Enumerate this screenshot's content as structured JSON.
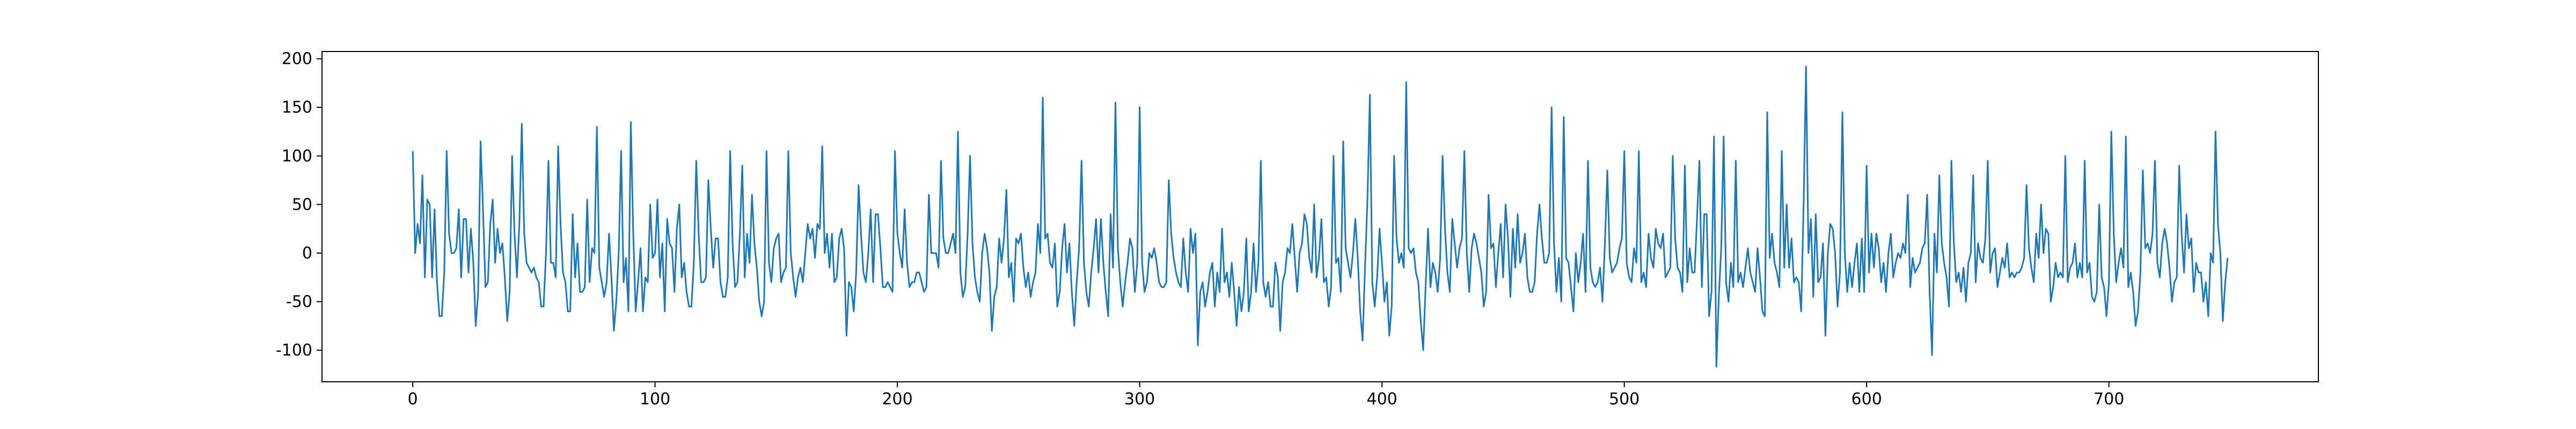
{
  "chart_data": {
    "type": "line",
    "color": "#1f77b4",
    "xlim": [
      -37.45,
      786.45
    ],
    "xticks": [
      0,
      100,
      200,
      300,
      400,
      500,
      600,
      700
    ],
    "ylim": [
      -132.5,
      207.5
    ],
    "yticks": [
      -100,
      -50,
      0,
      50,
      100,
      150,
      200
    ],
    "values": [
      105,
      0,
      30,
      10,
      80,
      -25,
      55,
      50,
      -25,
      45,
      -30,
      -65,
      -65,
      -20,
      105,
      20,
      0,
      0,
      5,
      45,
      -25,
      35,
      35,
      -20,
      25,
      -10,
      -75,
      -40,
      115,
      45,
      -35,
      -30,
      30,
      55,
      -10,
      25,
      0,
      10,
      -25,
      -70,
      -40,
      100,
      20,
      -25,
      30,
      133,
      20,
      -10,
      -15,
      -20,
      -15,
      -25,
      -30,
      -55,
      -55,
      0,
      95,
      -10,
      -10,
      -25,
      110,
      30,
      -20,
      -30,
      -60,
      -60,
      40,
      -25,
      10,
      -40,
      -40,
      -35,
      55,
      -30,
      5,
      0,
      130,
      -15,
      -30,
      -45,
      -30,
      20,
      -25,
      -80,
      -50,
      0,
      105,
      -30,
      -5,
      -60,
      135,
      20,
      -60,
      -30,
      5,
      -60,
      -25,
      -30,
      50,
      -5,
      0,
      55,
      -25,
      10,
      -60,
      35,
      10,
      5,
      -40,
      25,
      50,
      -25,
      -10,
      -40,
      -55,
      -55,
      -10,
      95,
      20,
      -30,
      -30,
      -25,
      75,
      25,
      -15,
      15,
      15,
      -30,
      -45,
      -45,
      -25,
      105,
      10,
      -35,
      -30,
      20,
      90,
      -25,
      20,
      -10,
      60,
      10,
      -15,
      -50,
      -65,
      -50,
      105,
      -10,
      -30,
      5,
      15,
      20,
      -30,
      -20,
      -15,
      105,
      0,
      -25,
      -45,
      -25,
      -15,
      -30,
      0,
      30,
      15,
      25,
      -5,
      30,
      25,
      110,
      0,
      20,
      -15,
      20,
      -30,
      -25,
      15,
      25,
      5,
      -85,
      -30,
      -35,
      -60,
      -20,
      70,
      20,
      -20,
      -30,
      0,
      45,
      -30,
      40,
      40,
      5,
      -35,
      -35,
      -30,
      -35,
      -40,
      105,
      20,
      0,
      -15,
      45,
      -10,
      -35,
      -30,
      -30,
      -20,
      -20,
      -30,
      -40,
      -35,
      60,
      0,
      0,
      0,
      -15,
      95,
      15,
      0,
      0,
      10,
      20,
      0,
      125,
      -20,
      -45,
      -35,
      20,
      100,
      10,
      -25,
      -40,
      -50,
      0,
      20,
      5,
      -20,
      -80,
      -45,
      -35,
      15,
      -10,
      15,
      65,
      -25,
      -10,
      -50,
      15,
      10,
      20,
      -15,
      -35,
      -20,
      -45,
      -30,
      -20,
      30,
      0,
      160,
      15,
      20,
      -10,
      -15,
      10,
      -55,
      -40,
      5,
      30,
      -20,
      10,
      -40,
      -75,
      -30,
      5,
      95,
      -10,
      -40,
      -55,
      -20,
      5,
      35,
      -20,
      35,
      -10,
      -40,
      -65,
      40,
      -15,
      155,
      5,
      -30,
      -55,
      -30,
      -10,
      15,
      5,
      -40,
      -10,
      150,
      -10,
      -40,
      -30,
      0,
      -5,
      5,
      -10,
      -30,
      -35,
      -35,
      -30,
      75,
      20,
      -5,
      -20,
      -30,
      -35,
      15,
      -20,
      -40,
      25,
      0,
      20,
      -95,
      -40,
      -30,
      -55,
      -40,
      -20,
      -10,
      -55,
      -20,
      -40,
      25,
      -30,
      -20,
      -45,
      -10,
      -40,
      -75,
      -35,
      -60,
      -40,
      15,
      -60,
      -40,
      10,
      -40,
      -10,
      95,
      -30,
      -45,
      -30,
      -55,
      -55,
      -10,
      -25,
      -80,
      -30,
      -20,
      5,
      0,
      30,
      -5,
      -40,
      0,
      10,
      40,
      30,
      -5,
      -20,
      50,
      -25,
      -5,
      35,
      -30,
      -25,
      -55,
      -35,
      100,
      -10,
      -5,
      -40,
      115,
      5,
      -10,
      -25,
      0,
      35,
      -5,
      -60,
      -90,
      -15,
      55,
      163,
      -30,
      -55,
      -25,
      25,
      -10,
      -50,
      -30,
      -85,
      -55,
      100,
      15,
      -10,
      0,
      -15,
      176,
      5,
      0,
      5,
      -20,
      -30,
      -70,
      -100,
      -35,
      25,
      -35,
      -10,
      -20,
      -40,
      -5,
      100,
      25,
      -20,
      -40,
      35,
      10,
      -15,
      5,
      15,
      105,
      0,
      -40,
      5,
      20,
      10,
      -5,
      -20,
      -55,
      -40,
      60,
      5,
      10,
      -35,
      0,
      30,
      -25,
      50,
      15,
      -45,
      25,
      -15,
      40,
      -10,
      0,
      20,
      -25,
      -40,
      -40,
      -30,
      20,
      50,
      15,
      -10,
      -10,
      0,
      150,
      10,
      -40,
      -5,
      -50,
      140,
      -5,
      -10,
      -35,
      -60,
      0,
      -30,
      -10,
      20,
      -40,
      95,
      -15,
      -30,
      -35,
      -30,
      -15,
      -50,
      10,
      85,
      -5,
      -20,
      -15,
      -10,
      5,
      15,
      105,
      -10,
      -25,
      -30,
      5,
      -10,
      105,
      -30,
      -20,
      -35,
      20,
      -5,
      -15,
      25,
      10,
      5,
      20,
      -25,
      -20,
      -15,
      100,
      15,
      -15,
      -20,
      -40,
      90,
      -30,
      5,
      -20,
      -20,
      35,
      95,
      -35,
      40,
      40,
      -65,
      -40,
      120,
      -117,
      -45,
      5,
      120,
      -30,
      -50,
      -10,
      -35,
      95,
      -30,
      -20,
      -35,
      -15,
      5,
      -20,
      -30,
      -40,
      5,
      -25,
      -60,
      -65,
      145,
      -5,
      20,
      -10,
      -20,
      -35,
      105,
      -15,
      50,
      -15,
      15,
      -30,
      -25,
      -30,
      -60,
      50,
      192,
      0,
      35,
      -45,
      40,
      -30,
      -25,
      10,
      -85,
      0,
      30,
      25,
      0,
      -55,
      -20,
      145,
      0,
      -40,
      -10,
      -35,
      -10,
      10,
      -40,
      15,
      -40,
      90,
      -20,
      20,
      -15,
      20,
      5,
      -30,
      -10,
      -40,
      0,
      20,
      -25,
      -10,
      0,
      -5,
      10,
      0,
      60,
      -35,
      -5,
      -20,
      -15,
      -10,
      5,
      10,
      60,
      -40,
      -105,
      20,
      -20,
      80,
      10,
      -10,
      -25,
      -55,
      95,
      10,
      -30,
      -20,
      -40,
      -15,
      -50,
      -10,
      0,
      80,
      -30,
      10,
      -5,
      -10,
      15,
      95,
      -20,
      0,
      5,
      -35,
      -20,
      -5,
      -15,
      10,
      -25,
      -20,
      -25,
      -20,
      -20,
      -15,
      -5,
      70,
      5,
      -15,
      -30,
      20,
      -5,
      50,
      0,
      25,
      20,
      -50,
      -35,
      -10,
      -25,
      -20,
      -25,
      100,
      -30,
      -15,
      -10,
      10,
      -25,
      -10,
      -25,
      95,
      -20,
      -10,
      -45,
      -50,
      -40,
      50,
      -25,
      -35,
      -65,
      -30,
      125,
      20,
      -30,
      -10,
      5,
      -15,
      120,
      -35,
      -20,
      -40,
      -75,
      -60,
      -20,
      85,
      5,
      10,
      0,
      20,
      95,
      -10,
      -25,
      10,
      25,
      10,
      -15,
      -50,
      -30,
      -25,
      90,
      20,
      -20,
      40,
      5,
      15,
      -40,
      -10,
      -20,
      -20,
      -50,
      -30,
      -65,
      0,
      -10,
      125,
      30,
      0,
      -70,
      -30,
      -5
    ]
  }
}
